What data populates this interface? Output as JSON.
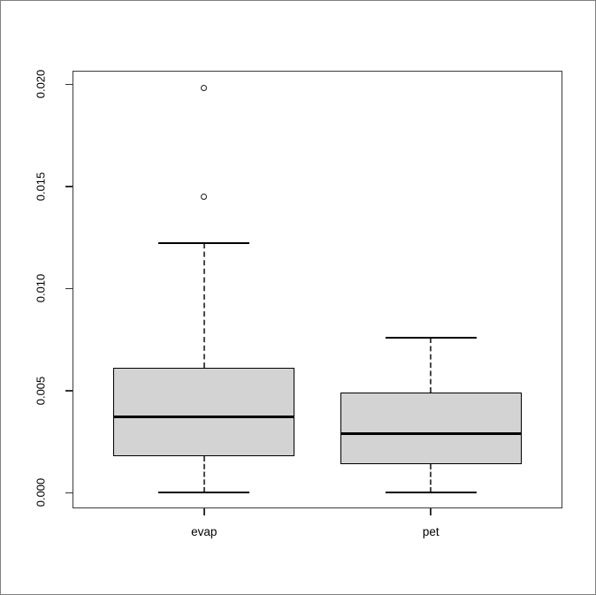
{
  "canvas": {
    "background": "#ffffff",
    "border_color": "#7f7f7f"
  },
  "chart_data": {
    "type": "boxplot",
    "title": "",
    "xlabel": "",
    "ylabel": "",
    "categories": [
      "evap",
      "pet"
    ],
    "series": [
      {
        "name": "evap",
        "x": 1,
        "lower_whisker": 0.0,
        "q1": 0.0018,
        "median": 0.0037,
        "q3": 0.0061,
        "upper_whisker": 0.0122,
        "outliers": [
          0.0145,
          0.0198
        ]
      },
      {
        "name": "pet",
        "x": 2,
        "lower_whisker": 0.0,
        "q1": 0.0014,
        "median": 0.0029,
        "q3": 0.0049,
        "upper_whisker": 0.0076,
        "outliers": []
      }
    ],
    "x_axis": {
      "range": [
        0.42,
        2.58
      ],
      "ticks": [
        1,
        2
      ],
      "tick_labels": [
        "evap",
        "pet"
      ]
    },
    "y_axis": {
      "range": [
        -0.00076,
        0.02065
      ],
      "ticks": [
        0.0,
        0.005,
        0.01,
        0.015,
        0.02
      ],
      "tick_labels": [
        "0.000",
        "0.005",
        "0.010",
        "0.015",
        "0.020"
      ]
    },
    "style": {
      "box_fill": "#d3d3d3",
      "box_stroke": "#000000",
      "median_color": "#000000",
      "whisker_color": "#4a4a4a",
      "whisker_style": "dashed",
      "box_width_units": 0.8,
      "cap_width_units": 0.4,
      "outlier_radius": 3.5
    },
    "grid": false,
    "legend": false
  }
}
